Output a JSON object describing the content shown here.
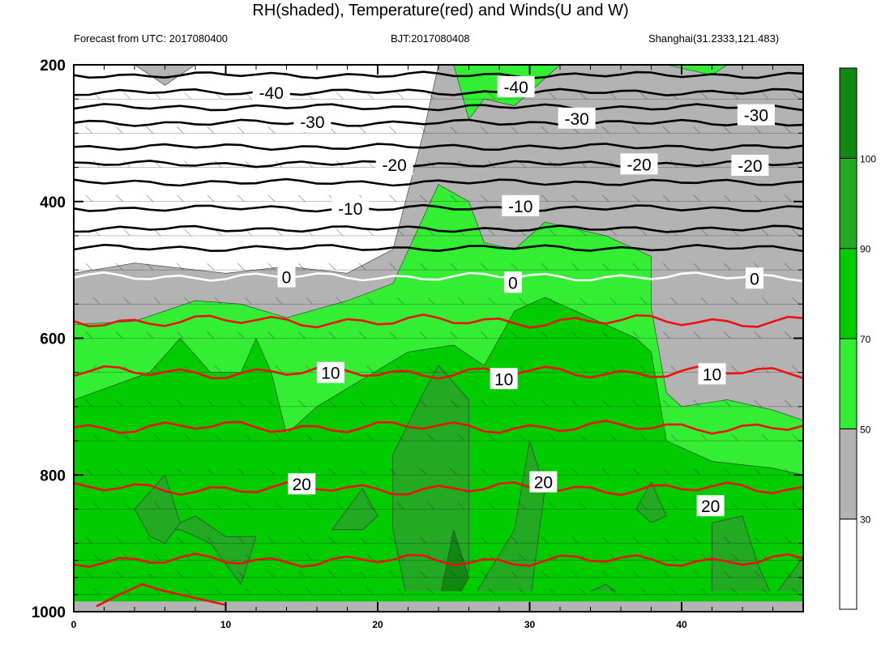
{
  "title": "RH(shaded), Temperature(red) and Winds(U and W)",
  "subtitle_left": "Forecast from UTC: 2017080400",
  "subtitle_center": "BJT:2017080408",
  "subtitle_right": "Shanghai(31.2333,121.483)",
  "colors": {
    "rh_0_30": "#ffffff",
    "rh_30_50": "#b3b3b3",
    "rh_50_70": "#33ee33",
    "rh_70_90": "#00cc00",
    "rh_90_100": "#22aa22",
    "rh_100_plus": "#118811",
    "temp_warm": "#ee1111",
    "temp_cold": "#000000",
    "freezing_line": "#ffffff"
  },
  "chart_data": {
    "type": "heatmap",
    "title": "RH(shaded), Temperature(red) and Winds(U and W)",
    "xlabel": "",
    "ylabel": "",
    "x_range": [
      0,
      48
    ],
    "y_range": [
      1000,
      200
    ],
    "y_inverted": true,
    "x_ticks": [
      0,
      10,
      20,
      30,
      40
    ],
    "y_ticks": [
      200,
      400,
      600,
      800,
      1000
    ],
    "y_minor_ticks": [
      200,
      250,
      300,
      350,
      400,
      450,
      500,
      550,
      600,
      650,
      700,
      750,
      800,
      850,
      900,
      925,
      950,
      975,
      1000
    ],
    "shading_variable": "RH",
    "colorbar": {
      "levels": [
        30,
        50,
        70,
        90,
        100
      ],
      "labels": [
        "30",
        "50",
        "70",
        "90",
        "100"
      ]
    },
    "temperature_contours": [
      {
        "level": -40,
        "p": 240,
        "label_x": 13
      },
      {
        "level": -30,
        "p": 285,
        "label_x": 17
      },
      {
        "level": -20,
        "p": 345,
        "label_x": 22
      },
      {
        "level": -10,
        "p": 410,
        "label_x": 18
      },
      {
        "level": 0,
        "p": 510,
        "label_x": 14
      },
      {
        "level": 10,
        "p": 650,
        "label_x": 17
      },
      {
        "level": 20,
        "p": 820,
        "label_x": 15
      }
    ],
    "contour_labels": [
      {
        "text": "-40",
        "x": 13,
        "p": 240
      },
      {
        "text": "-40",
        "x": 29.1,
        "p": 232
      },
      {
        "text": "-30",
        "x": 15.7,
        "p": 283
      },
      {
        "text": "-30",
        "x": 33.1,
        "p": 278
      },
      {
        "text": "-30",
        "x": 44.9,
        "p": 273
      },
      {
        "text": "-20",
        "x": 21.1,
        "p": 346
      },
      {
        "text": "-20",
        "x": 37.2,
        "p": 345
      },
      {
        "text": "-20",
        "x": 44.5,
        "p": 347
      },
      {
        "text": "-10",
        "x": 18.2,
        "p": 410
      },
      {
        "text": "-10",
        "x": 29.4,
        "p": 406
      },
      {
        "text": "0",
        "x": 14,
        "p": 510
      },
      {
        "text": "0",
        "x": 28.9,
        "p": 518
      },
      {
        "text": "0",
        "x": 44.8,
        "p": 512
      },
      {
        "text": "10",
        "x": 16.9,
        "p": 650
      },
      {
        "text": "10",
        "x": 28.3,
        "p": 659
      },
      {
        "text": "10",
        "x": 42,
        "p": 652
      },
      {
        "text": "20",
        "x": 15,
        "p": 813
      },
      {
        "text": "20",
        "x": 30.9,
        "p": 810
      },
      {
        "text": "20",
        "x": 41.9,
        "p": 845
      }
    ]
  }
}
